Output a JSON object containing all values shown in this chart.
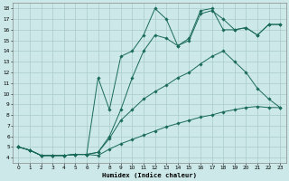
{
  "background_color": "#cce8e8",
  "grid_color": "#aacccc",
  "line_color": "#1a6b5a",
  "xlabel": "Humidex (Indice chaleur)",
  "xlim": [
    -0.5,
    23.5
  ],
  "ylim": [
    3.5,
    18.5
  ],
  "xticks": [
    0,
    1,
    2,
    3,
    4,
    5,
    6,
    7,
    8,
    9,
    10,
    11,
    12,
    13,
    14,
    15,
    16,
    17,
    18,
    19,
    20,
    21,
    22,
    23
  ],
  "yticks": [
    4,
    5,
    6,
    7,
    8,
    9,
    10,
    11,
    12,
    13,
    14,
    15,
    16,
    17,
    18
  ],
  "lines": [
    [
      5.0,
      4.7,
      4.2,
      4.2,
      4.2,
      4.3,
      4.3,
      4.2,
      4.8,
      5.3,
      5.7,
      6.1,
      6.5,
      6.9,
      7.2,
      7.5,
      7.8,
      8.0,
      8.3,
      8.5,
      8.7,
      8.8,
      8.7,
      8.7
    ],
    [
      5.0,
      4.7,
      4.2,
      4.2,
      4.2,
      4.3,
      4.3,
      4.5,
      5.8,
      7.5,
      8.5,
      9.5,
      10.2,
      10.8,
      11.5,
      12.0,
      12.8,
      13.5,
      14.0,
      13.0,
      12.0,
      10.5,
      9.5,
      8.7
    ],
    [
      5.0,
      4.7,
      4.2,
      4.2,
      4.2,
      4.3,
      4.3,
      4.5,
      6.0,
      8.5,
      11.5,
      14.0,
      15.5,
      15.2,
      14.5,
      15.0,
      17.5,
      17.8,
      17.0,
      16.0,
      16.2,
      15.5,
      16.5,
      16.5
    ],
    [
      5.0,
      4.7,
      4.2,
      4.2,
      4.2,
      4.3,
      4.3,
      11.5,
      8.5,
      13.5,
      14.0,
      15.5,
      18.0,
      17.0,
      14.5,
      15.2,
      17.8,
      18.0,
      16.0,
      16.0,
      16.2,
      15.5,
      16.5,
      16.5
    ]
  ]
}
